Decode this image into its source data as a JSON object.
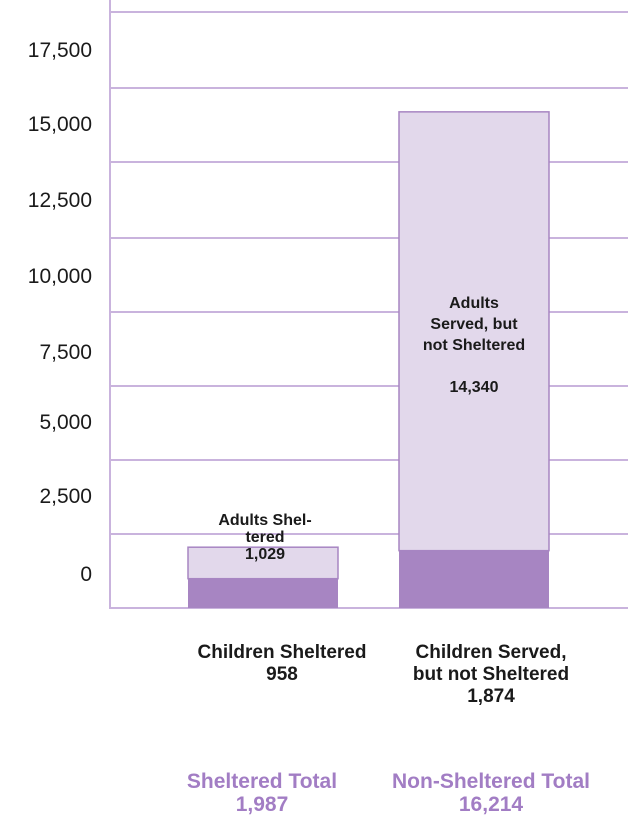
{
  "chart_data": {
    "type": "bar",
    "stacked": true,
    "ylim": [
      0,
      17500
    ],
    "y_ticks": [
      0,
      2500,
      5000,
      7500,
      10000,
      12500,
      15000,
      17500
    ],
    "y_tick_labels": [
      "0",
      "2,500",
      "5,000",
      "7,500",
      "10,000",
      "12,500",
      "15,000",
      "17,500"
    ],
    "grid": true,
    "bars": [
      {
        "segments": [
          {
            "label_lines": [
              "Children Sheltered",
              "958"
            ],
            "value": 958,
            "color": "#a785c2"
          },
          {
            "label_lines": [
              "Adults Shel-",
              "tered",
              "1,029"
            ],
            "value": 1029,
            "color": "#e2d8eb"
          }
        ],
        "total_lines": [
          "Sheltered Total",
          "1,987"
        ],
        "total": 1987
      },
      {
        "segments": [
          {
            "label_lines": [
              "Children Served,",
              "but not Sheltered",
              "1,874"
            ],
            "value": 1874,
            "color": "#a785c2"
          },
          {
            "label_lines": [
              "Adults",
              "Served, but",
              "not Sheltered",
              "",
              "14,340"
            ],
            "value": 14340,
            "color": "#e2d8eb"
          }
        ],
        "total_lines": [
          "Non-Sheltered Total",
          "16,214"
        ],
        "total": 16214
      }
    ],
    "colors": {
      "grid": "#c9b3dd",
      "children": "#a785c2",
      "adults": "#e2d8eb",
      "adults_border": "#a785c2",
      "total_text": "#a27dc4"
    }
  }
}
